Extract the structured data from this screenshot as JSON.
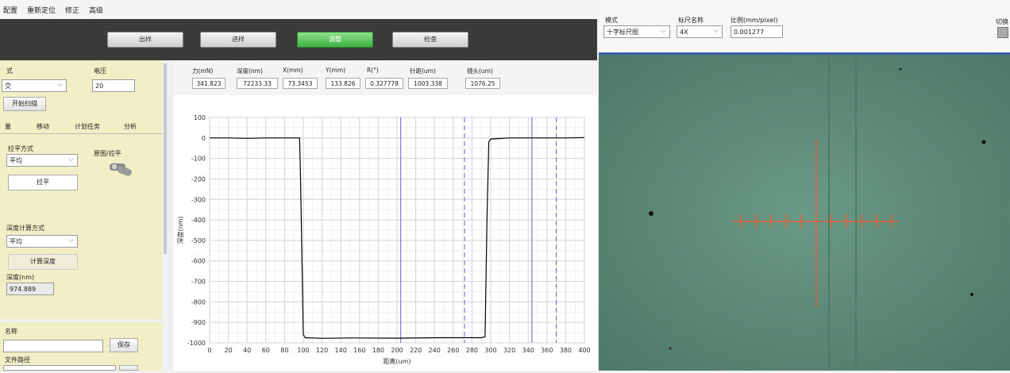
{
  "menu": [
    "配置",
    "重新定位",
    "修正",
    "高级"
  ],
  "toolbar": {
    "buttons": [
      "出样",
      "进样",
      "调整",
      "检查"
    ],
    "active": "调整"
  },
  "left_panel": {
    "mode_label": "式",
    "mode_value": "交",
    "voltage_label": "电压",
    "voltage_value": "20",
    "scan_button": "开始扫描",
    "tabs": [
      "量",
      "移动",
      "计划任务",
      "分析"
    ],
    "level_method_label": "拉平方式",
    "level_method_value": "平均",
    "level_toggle_label": "原图/拉平",
    "level_button": "拉平",
    "depth_method_label": "深度计算方式",
    "depth_method_value": "平均",
    "calc_depth_button": "计算深度",
    "depth_label": "深度(nm)",
    "depth_value": "974.889",
    "name_label": "名称",
    "name_value": "",
    "save_button": "保存",
    "path_label": "文件路径"
  },
  "readouts": [
    {
      "label": "力(mN)",
      "value": "341.823"
    },
    {
      "label": "深度(nm)",
      "value": "72233.33"
    },
    {
      "label": "X(mm)",
      "value": "73.3453"
    },
    {
      "label": "Y(mm)",
      "value": "133.826"
    },
    {
      "label": "R(°)",
      "value": "0.327778"
    },
    {
      "label": "针距(um)",
      "value": "1003.338"
    },
    {
      "label": "镜头(um)",
      "value": "1076.25"
    }
  ],
  "chart_data": {
    "type": "line",
    "xlabel": "距离(um)",
    "ylabel": "深度(nm)",
    "xlim": [
      0,
      400
    ],
    "ylim": [
      -1000,
      100
    ],
    "xticks": [
      0,
      20,
      40,
      60,
      80,
      100,
      120,
      140,
      160,
      180,
      200,
      220,
      240,
      260,
      280,
      300,
      320,
      340,
      360,
      380,
      400
    ],
    "yticks": [
      100,
      0,
      -100,
      -200,
      -300,
      -400,
      -500,
      -600,
      -700,
      -800,
      -900,
      -1000
    ],
    "grid": true,
    "series": [
      {
        "x": [
          0,
          20,
          40,
          60,
          80,
          96,
          97,
          100,
          102,
          120,
          150,
          200,
          250,
          290,
          294,
          296,
          298,
          300,
          320,
          350,
          380,
          400
        ],
        "y": [
          0,
          0,
          -2,
          0,
          0,
          0,
          -200,
          -960,
          -975,
          -978,
          -976,
          -977,
          -975,
          -975,
          -970,
          -400,
          -20,
          -5,
          0,
          0,
          0,
          2
        ]
      }
    ],
    "markers_solid": [
      204,
      344
    ],
    "markers_dashed": [
      272,
      370
    ]
  },
  "right_header": {
    "mode_label": "模式",
    "mode_value": "十字标尺图",
    "ruler_label": "标尺名称",
    "ruler_value": "4X",
    "ratio_label": "比例(mm/pixel)",
    "ratio_value": "0.001277",
    "switch_label": "切换"
  },
  "colors": {
    "toolbar_bg": "#3a3a3a",
    "active_green": "#3fb03f",
    "panel_yellow": "#f2efc6",
    "micro_bg": "#5f8d7a",
    "crosshair": "#e0603a",
    "line": "#000000",
    "marker_line": "#6a5acd"
  }
}
